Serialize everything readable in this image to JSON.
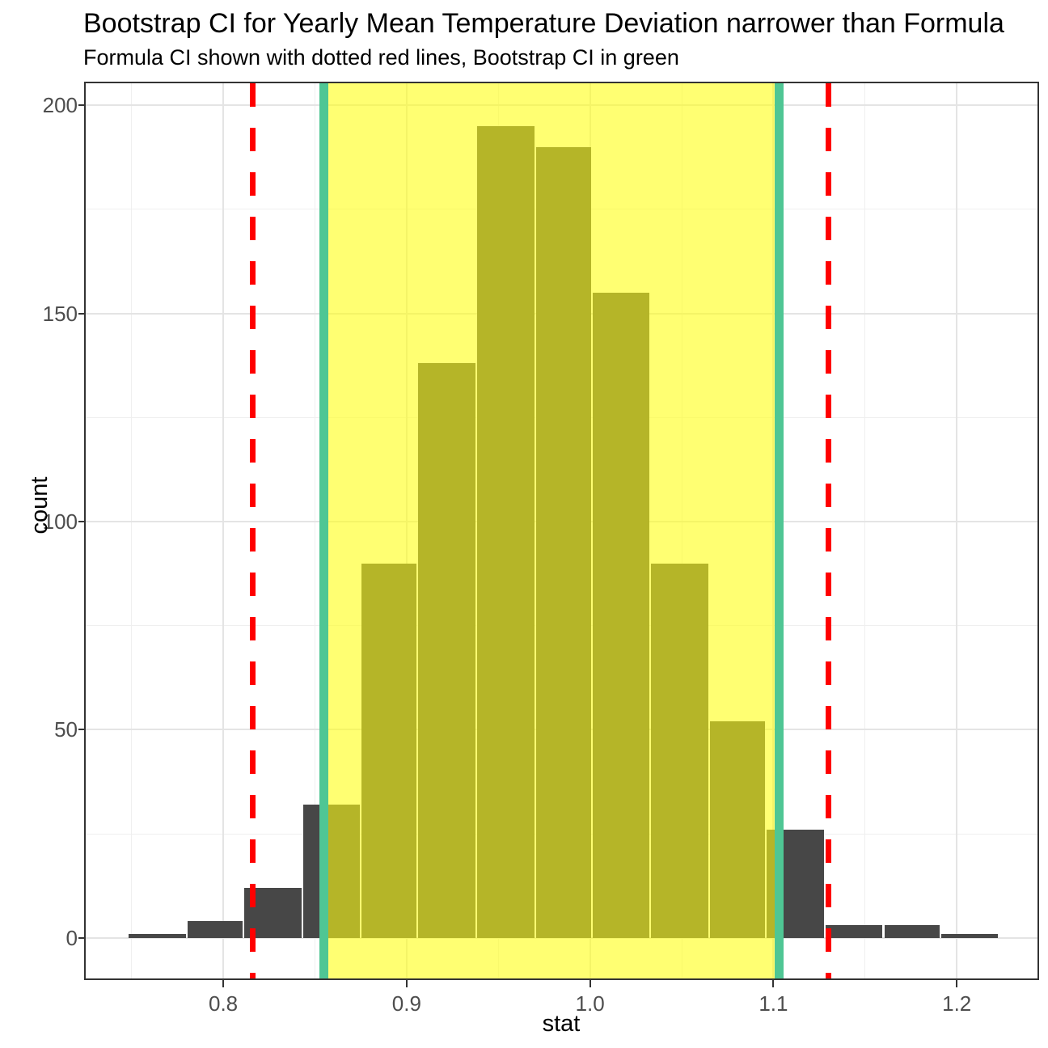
{
  "figure": {
    "title": "Bootstrap CI for Yearly Mean Temperature Deviation narrower than Formula",
    "subtitle": "Formula CI shown with dotted red lines, Bootstrap CI in green"
  },
  "chart_data": {
    "type": "bar",
    "subtype": "histogram",
    "title": "Bootstrap CI for Yearly Mean Temperature Deviation narrower than Formula",
    "subtitle": "Formula CI shown with dotted red lines, Bootstrap CI in green",
    "xlabel": "stat",
    "ylabel": "count",
    "bin_edges": [
      0.748,
      0.78,
      0.811,
      0.843,
      0.875,
      0.906,
      0.938,
      0.97,
      1.001,
      1.033,
      1.065,
      1.096,
      1.128,
      1.16,
      1.191,
      1.223
    ],
    "counts": [
      1,
      4,
      12,
      32,
      90,
      138,
      195,
      190,
      155,
      90,
      52,
      26,
      3,
      3,
      1
    ],
    "bootstrap_ci": [
      0.855,
      1.103
    ],
    "formula_ci": [
      0.816,
      1.13
    ],
    "x_ticks": {
      "values": [
        0.8,
        0.9,
        1.0,
        1.1,
        1.2
      ],
      "labels": [
        "0.8",
        "0.9",
        "1.0",
        "1.1",
        "1.2"
      ]
    },
    "y_ticks": {
      "values": [
        0,
        50,
        100,
        150,
        200
      ],
      "labels": [
        "0",
        "50",
        "100",
        "150",
        "200"
      ]
    },
    "xlim": [
      0.725,
      1.244
    ],
    "ylim": [
      -9.75,
      205.3
    ],
    "grid": "major and minor, light gray, theme_bw",
    "legend": "none",
    "colors": {
      "bar_fill": "#474747",
      "bootstrap_region_fill": "rgba(255,255,20,0.6)",
      "bootstrap_line_green": "#4FC694",
      "formula_line_red": "#FF0000",
      "grid_major": "#E4E4E4",
      "grid_minor": "#EFEFEF",
      "panel_border": "#333333",
      "tick_text": "#4D4D4D",
      "text": "#000000"
    }
  }
}
